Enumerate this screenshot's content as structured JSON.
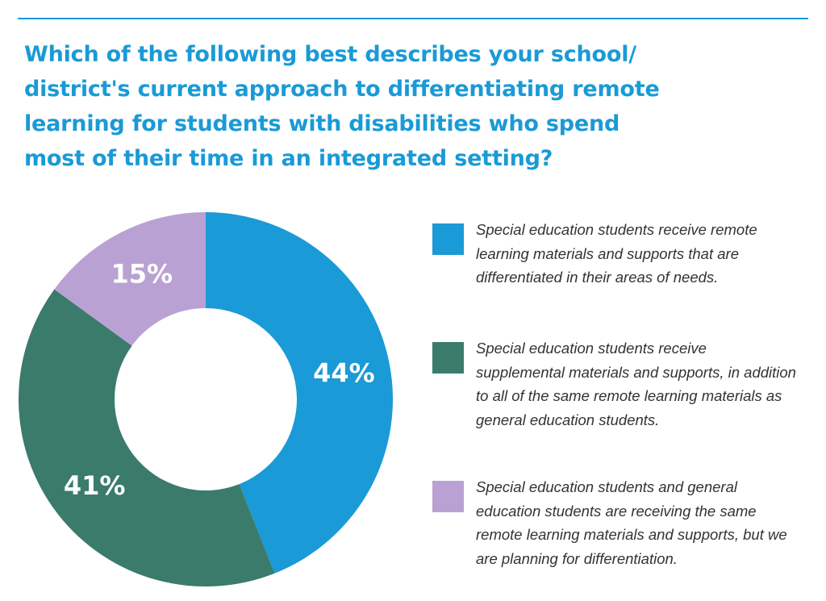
{
  "title": "Which of the following best describes your school/ district's current approach to differentiating remote learning for students with disabilities who spend most of their time in an integrated setting?",
  "colors": {
    "accent": "#1a9ad6",
    "slice1": "#1a9ad6",
    "slice2": "#3a7b6c",
    "slice3": "#b9a2d3"
  },
  "chart_data": {
    "type": "pie",
    "donut": true,
    "title": "Which of the following best describes your school/ district's current approach to differentiating remote learning for students with disabilities who spend most of their time in an integrated setting?",
    "slices": [
      {
        "label": "Special education students receive remote learning materials and supports that are differentiated in their areas of needs.",
        "value": 44,
        "display": "44%",
        "color": "#1a9ad6"
      },
      {
        "label": "Special education students receive supplemental materials and supports, in addition to all of the same remote learning materials as general education students.",
        "value": 41,
        "display": "41%",
        "color": "#3a7b6c"
      },
      {
        "label": "Special education students and general education students are receiving the same remote learning materials and supports, but we are planning for differentiation.",
        "value": 15,
        "display": "15%",
        "color": "#b9a2d3"
      }
    ],
    "legend_position": "right"
  }
}
